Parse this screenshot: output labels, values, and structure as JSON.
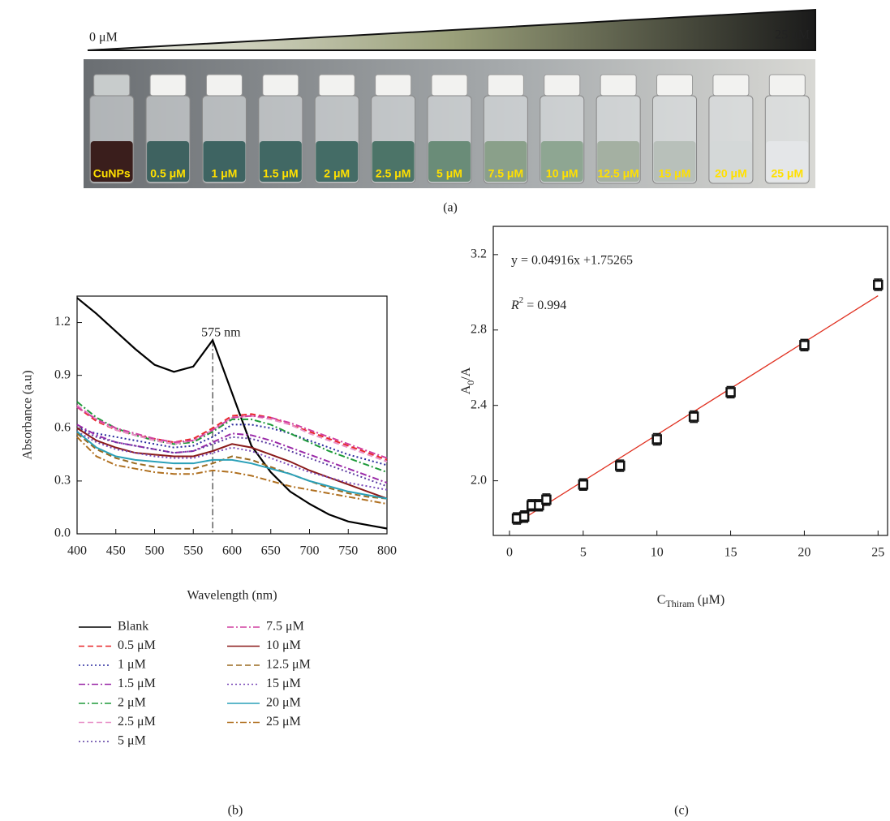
{
  "photo": {
    "start_label": "0 μM",
    "end_label": "25 μM",
    "vials": [
      "CuNPs",
      "0.5 μM",
      "1 μM",
      "1.5 μM",
      "2 μM",
      "2.5 μM",
      "5 μM",
      "7.5 μM",
      "10 μM",
      "12.5 μM",
      "15 μM",
      "20 μM",
      "25 μM"
    ],
    "panel_label": "(a)"
  },
  "chart_data": [
    {
      "type": "line",
      "panel_label": "(b)",
      "x_label": "Wavelength (nm)",
      "y_label": "Absorbance (a.u)",
      "annotation": {
        "text": "575 nm",
        "x": 575
      },
      "xlim": [
        400,
        800
      ],
      "xticks": [
        400,
        450,
        500,
        550,
        600,
        650,
        700,
        750,
        800
      ],
      "ylim": [
        0,
        1.35
      ],
      "yticks": [
        {
          "value": 0,
          "label": "0.0"
        },
        0.3,
        0.6,
        0.9,
        1.2
      ],
      "x": [
        400,
        425,
        450,
        475,
        500,
        525,
        550,
        575,
        600,
        625,
        650,
        675,
        700,
        725,
        750,
        775,
        800
      ],
      "series": [
        {
          "name": "Blank",
          "color": "#000000",
          "style": "solid",
          "values": [
            1.34,
            1.25,
            1.15,
            1.05,
            0.96,
            0.92,
            0.95,
            1.1,
            0.8,
            0.5,
            0.35,
            0.24,
            0.17,
            0.11,
            0.07,
            0.05,
            0.03
          ]
        },
        {
          "name": "0.5 μM",
          "color": "#e8282b",
          "style": "dashed",
          "values": [
            0.72,
            0.64,
            0.59,
            0.56,
            0.54,
            0.52,
            0.54,
            0.6,
            0.67,
            0.68,
            0.66,
            0.62,
            0.58,
            0.54,
            0.5,
            0.46,
            0.42
          ]
        },
        {
          "name": "1 μM",
          "color": "#2a2a9e",
          "style": "dotted",
          "values": [
            0.6,
            0.57,
            0.55,
            0.53,
            0.51,
            0.49,
            0.5,
            0.55,
            0.62,
            0.62,
            0.6,
            0.57,
            0.53,
            0.49,
            0.45,
            0.42,
            0.39
          ]
        },
        {
          "name": "1.5 μM",
          "color": "#9a2aa8",
          "style": "dashdot",
          "values": [
            0.62,
            0.56,
            0.52,
            0.5,
            0.48,
            0.46,
            0.47,
            0.52,
            0.57,
            0.56,
            0.53,
            0.49,
            0.45,
            0.41,
            0.37,
            0.33,
            0.29
          ]
        },
        {
          "name": "2 μM",
          "color": "#1e9a3a",
          "style": "dashdot",
          "values": [
            0.75,
            0.66,
            0.6,
            0.56,
            0.53,
            0.51,
            0.52,
            0.58,
            0.65,
            0.65,
            0.62,
            0.57,
            0.52,
            0.47,
            0.43,
            0.39,
            0.35
          ]
        },
        {
          "name": "2.5 μM",
          "color": "#e890c8",
          "style": "dashed",
          "values": [
            0.73,
            0.65,
            0.59,
            0.56,
            0.53,
            0.51,
            0.53,
            0.59,
            0.66,
            0.67,
            0.65,
            0.62,
            0.57,
            0.53,
            0.49,
            0.45,
            0.41
          ]
        },
        {
          "name": "5 μM",
          "color": "#5a3aa0",
          "style": "dotted",
          "values": [
            0.6,
            0.55,
            0.52,
            0.5,
            0.48,
            0.46,
            0.47,
            0.51,
            0.55,
            0.54,
            0.51,
            0.47,
            0.43,
            0.39,
            0.35,
            0.31,
            0.27
          ]
        },
        {
          "name": "7.5 μM",
          "color": "#d040a0",
          "style": "dashdot",
          "values": [
            0.72,
            0.65,
            0.6,
            0.57,
            0.54,
            0.52,
            0.53,
            0.59,
            0.66,
            0.67,
            0.66,
            0.63,
            0.59,
            0.55,
            0.51,
            0.47,
            0.43
          ]
        },
        {
          "name": "10 μM",
          "color": "#8a1a1a",
          "style": "solid",
          "values": [
            0.6,
            0.53,
            0.49,
            0.46,
            0.45,
            0.44,
            0.44,
            0.47,
            0.51,
            0.49,
            0.45,
            0.41,
            0.36,
            0.32,
            0.28,
            0.24,
            0.2
          ]
        },
        {
          "name": "12.5 μM",
          "color": "#9a6a20",
          "style": "dashed",
          "values": [
            0.57,
            0.48,
            0.43,
            0.4,
            0.38,
            0.37,
            0.37,
            0.4,
            0.44,
            0.42,
            0.38,
            0.34,
            0.3,
            0.26,
            0.23,
            0.21,
            0.2
          ]
        },
        {
          "name": "15 μM",
          "color": "#7a4ab8",
          "style": "dotted",
          "values": [
            0.58,
            0.52,
            0.48,
            0.46,
            0.44,
            0.43,
            0.43,
            0.46,
            0.49,
            0.47,
            0.43,
            0.39,
            0.35,
            0.32,
            0.29,
            0.27,
            0.25
          ]
        },
        {
          "name": "20 μM",
          "color": "#2aa0b8",
          "style": "solid",
          "values": [
            0.58,
            0.49,
            0.44,
            0.42,
            0.41,
            0.4,
            0.4,
            0.42,
            0.42,
            0.4,
            0.37,
            0.34,
            0.3,
            0.27,
            0.24,
            0.22,
            0.2
          ]
        },
        {
          "name": "25 μM",
          "color": "#b07020",
          "style": "dashdot",
          "values": [
            0.55,
            0.44,
            0.39,
            0.37,
            0.35,
            0.34,
            0.34,
            0.36,
            0.35,
            0.33,
            0.3,
            0.27,
            0.25,
            0.23,
            0.21,
            0.19,
            0.17
          ]
        }
      ]
    },
    {
      "type": "scatter",
      "panel_label": "(c)",
      "x_label": {
        "main": "C",
        "sub": "Thiram",
        "unit": "(μM)"
      },
      "y_label": {
        "main": "A",
        "sub": "0",
        "rest": "/A"
      },
      "equation": "y = 0.04916x +1.75265",
      "r2": {
        "main": "R",
        "sup": "2",
        "rest": " = 0.994"
      },
      "fit": {
        "slope": 0.04916,
        "intercept": 1.75265,
        "color": "#e03020"
      },
      "xlim": [
        -1.1,
        25.7
      ],
      "xticks": [
        0,
        5,
        10,
        15,
        20,
        25
      ],
      "ylim": [
        1.71,
        3.35
      ],
      "yticks": [
        {
          "value": 2,
          "label": "2.0"
        },
        2.4,
        2.8,
        3.2
      ],
      "x": [
        0.5,
        1,
        1.5,
        2,
        2.5,
        5,
        7.5,
        10,
        12.5,
        15,
        20,
        25
      ],
      "y": [
        1.8,
        1.81,
        1.87,
        1.87,
        1.9,
        1.98,
        2.08,
        2.22,
        2.34,
        2.47,
        2.72,
        3.04
      ],
      "error": [
        0.03,
        0.03,
        0.03,
        0.03,
        0.03,
        0.03,
        0.03,
        0.03,
        0.03,
        0.03,
        0.03,
        0.03
      ]
    }
  ]
}
